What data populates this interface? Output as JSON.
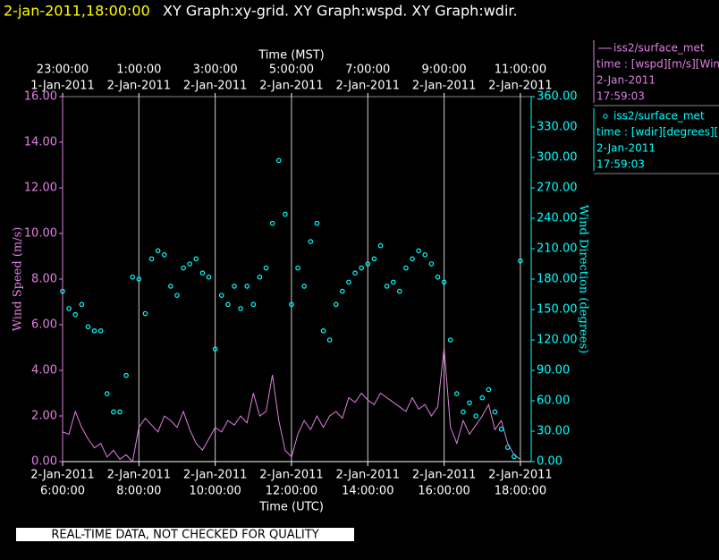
{
  "header": {
    "timestamp": "2-jan-2011,18:00:00",
    "graphs": "XY Graph:xy-grid.  XY Graph:wspd.  XY Graph:wdir."
  },
  "footer": "REAL-TIME DATA, NOT CHECKED FOR QUALITY",
  "chart_data": {
    "type": "line",
    "x_label": "Time (UTC)",
    "x2_label": "Time (MST)",
    "y_label": "Wind Speed (m/s)",
    "y2_label": "Wind Direction (degrees)",
    "xlim": [
      "2011-01-02T06:00",
      "2011-01-02T18:17"
    ],
    "xticks": [
      {
        "value": "2011-01-02T06:00",
        "label": [
          "2-Jan-2011",
          "6:00:00"
        ]
      },
      {
        "value": "2011-01-02T08:00",
        "label": [
          "2-Jan-2011",
          "8:00:00"
        ]
      },
      {
        "value": "2011-01-02T10:00",
        "label": [
          "2-Jan-2011",
          "10:00:00"
        ]
      },
      {
        "value": "2011-01-02T12:00",
        "label": [
          "2-Jan-2011",
          "12:00:00"
        ]
      },
      {
        "value": "2011-01-02T14:00",
        "label": [
          "2-Jan-2011",
          "14:00:00"
        ]
      },
      {
        "value": "2011-01-02T16:00",
        "label": [
          "2-Jan-2011",
          "16:00:00"
        ]
      },
      {
        "value": "2011-01-02T18:00",
        "label": [
          "2-Jan-2011",
          "18:00:00"
        ]
      }
    ],
    "x2ticks": [
      {
        "value": "2011-01-02T06:00",
        "label": [
          "1-Jan-2011",
          "23:00:00"
        ]
      },
      {
        "value": "2011-01-02T08:00",
        "label": [
          "2-Jan-2011",
          "1:00:00"
        ]
      },
      {
        "value": "2011-01-02T10:00",
        "label": [
          "2-Jan-2011",
          "3:00:00"
        ]
      },
      {
        "value": "2011-01-02T12:00",
        "label": [
          "2-Jan-2011",
          "5:00:00"
        ]
      },
      {
        "value": "2011-01-02T14:00",
        "label": [
          "2-Jan-2011",
          "7:00:00"
        ]
      },
      {
        "value": "2011-01-02T16:00",
        "label": [
          "2-Jan-2011",
          "9:00:00"
        ]
      },
      {
        "value": "2011-01-02T18:00",
        "label": [
          "2-Jan-2011",
          "11:00:00"
        ]
      }
    ],
    "ylim": [
      0,
      16
    ],
    "yticks": [
      {
        "value": 0,
        "label": "0.00"
      },
      {
        "value": 2,
        "label": "2.00"
      },
      {
        "value": 4,
        "label": "4.00"
      },
      {
        "value": 6,
        "label": "6.00"
      },
      {
        "value": 8,
        "label": "8.00"
      },
      {
        "value": 10,
        "label": "10.00"
      },
      {
        "value": 12,
        "label": "12.00"
      },
      {
        "value": 14,
        "label": "14.00"
      },
      {
        "value": 16,
        "label": "16.00"
      }
    ],
    "y2lim": [
      0,
      360
    ],
    "y2ticks": [
      {
        "value": 0,
        "label": "0.00"
      },
      {
        "value": 30,
        "label": "30.00"
      },
      {
        "value": 60,
        "label": "60.00"
      },
      {
        "value": 90,
        "label": "90.00"
      },
      {
        "value": 120,
        "label": "120.00"
      },
      {
        "value": 150,
        "label": "150.00"
      },
      {
        "value": 180,
        "label": "180.00"
      },
      {
        "value": 210,
        "label": "210.00"
      },
      {
        "value": 240,
        "label": "240.00"
      },
      {
        "value": 270,
        "label": "270.00"
      },
      {
        "value": 300,
        "label": "300.00"
      },
      {
        "value": 330,
        "label": "330.00"
      },
      {
        "value": 360,
        "label": "360.00"
      }
    ],
    "grid": true,
    "x": [
      "2011-01-02T06:00",
      "2011-01-02T06:10",
      "2011-01-02T06:20",
      "2011-01-02T06:30",
      "2011-01-02T06:40",
      "2011-01-02T06:50",
      "2011-01-02T07:00",
      "2011-01-02T07:10",
      "2011-01-02T07:20",
      "2011-01-02T07:30",
      "2011-01-02T07:40",
      "2011-01-02T07:50",
      "2011-01-02T08:00",
      "2011-01-02T08:10",
      "2011-01-02T08:20",
      "2011-01-02T08:30",
      "2011-01-02T08:40",
      "2011-01-02T08:50",
      "2011-01-02T09:00",
      "2011-01-02T09:10",
      "2011-01-02T09:20",
      "2011-01-02T09:30",
      "2011-01-02T09:40",
      "2011-01-02T09:50",
      "2011-01-02T10:00",
      "2011-01-02T10:10",
      "2011-01-02T10:20",
      "2011-01-02T10:30",
      "2011-01-02T10:40",
      "2011-01-02T10:50",
      "2011-01-02T11:00",
      "2011-01-02T11:10",
      "2011-01-02T11:20",
      "2011-01-02T11:30",
      "2011-01-02T11:40",
      "2011-01-02T11:50",
      "2011-01-02T12:00",
      "2011-01-02T12:10",
      "2011-01-02T12:20",
      "2011-01-02T12:30",
      "2011-01-02T12:40",
      "2011-01-02T12:50",
      "2011-01-02T13:00",
      "2011-01-02T13:10",
      "2011-01-02T13:20",
      "2011-01-02T13:30",
      "2011-01-02T13:40",
      "2011-01-02T13:50",
      "2011-01-02T14:00",
      "2011-01-02T14:10",
      "2011-01-02T14:20",
      "2011-01-02T14:30",
      "2011-01-02T14:40",
      "2011-01-02T14:50",
      "2011-01-02T15:00",
      "2011-01-02T15:10",
      "2011-01-02T15:20",
      "2011-01-02T15:30",
      "2011-01-02T15:40",
      "2011-01-02T15:50",
      "2011-01-02T16:00",
      "2011-01-02T16:10",
      "2011-01-02T16:20",
      "2011-01-02T16:30",
      "2011-01-02T16:40",
      "2011-01-02T16:50",
      "2011-01-02T17:00",
      "2011-01-02T17:10",
      "2011-01-02T17:20",
      "2011-01-02T17:30",
      "2011-01-02T17:40",
      "2011-01-02T17:50",
      "2011-01-02T18:00"
    ],
    "series": [
      {
        "name": "iss2/surface_met",
        "legend_label": "time : [wspd][m/s][Wind",
        "legend_date": "2-Jan-2011",
        "legend_time": "17:59:03",
        "color": "#e080e0",
        "style": "line",
        "values": [
          1.3,
          1.2,
          2.2,
          1.5,
          1.0,
          0.6,
          0.8,
          0.2,
          0.5,
          0.1,
          0.3,
          0.0,
          1.5,
          1.9,
          1.6,
          1.3,
          2.0,
          1.8,
          1.5,
          2.2,
          1.4,
          0.8,
          0.5,
          1.0,
          1.5,
          1.3,
          1.8,
          1.6,
          2.0,
          1.7,
          3.0,
          2.0,
          2.2,
          3.8,
          1.8,
          0.5,
          0.2,
          1.2,
          1.8,
          1.4,
          2.0,
          1.5,
          2.0,
          2.2,
          1.9,
          2.8,
          2.6,
          3.0,
          2.7,
          2.5,
          3.0,
          2.8,
          2.6,
          2.4,
          2.2,
          2.8,
          2.3,
          2.5,
          2.0,
          2.4,
          5.0,
          1.5,
          0.8,
          1.8,
          1.2,
          1.6,
          2.0,
          2.5,
          1.4,
          1.8,
          0.8,
          0.3,
          0.1
        ]
      },
      {
        "name": "iss2/surface_met",
        "legend_label": "time : [wdir][degrees][W",
        "legend_date": "2-Jan-2011",
        "legend_time": "17:59:03",
        "color": "#00ffff",
        "style": "circle",
        "axis": "y2",
        "values": [
          168,
          151,
          145,
          155,
          133,
          129,
          129,
          67,
          49,
          49,
          85,
          182,
          180,
          146,
          200,
          208,
          204,
          173,
          164,
          191,
          195,
          200,
          186,
          182,
          111,
          164,
          155,
          173,
          151,
          173,
          155,
          182,
          191,
          235,
          297,
          244,
          155,
          191,
          173,
          217,
          235,
          129,
          120,
          155,
          168,
          177,
          186,
          191,
          195,
          200,
          213,
          173,
          177,
          168,
          191,
          200,
          208,
          204,
          195,
          182,
          177,
          120,
          67,
          49,
          58,
          45,
          63,
          71,
          49,
          32,
          14,
          5,
          198
        ]
      }
    ]
  }
}
